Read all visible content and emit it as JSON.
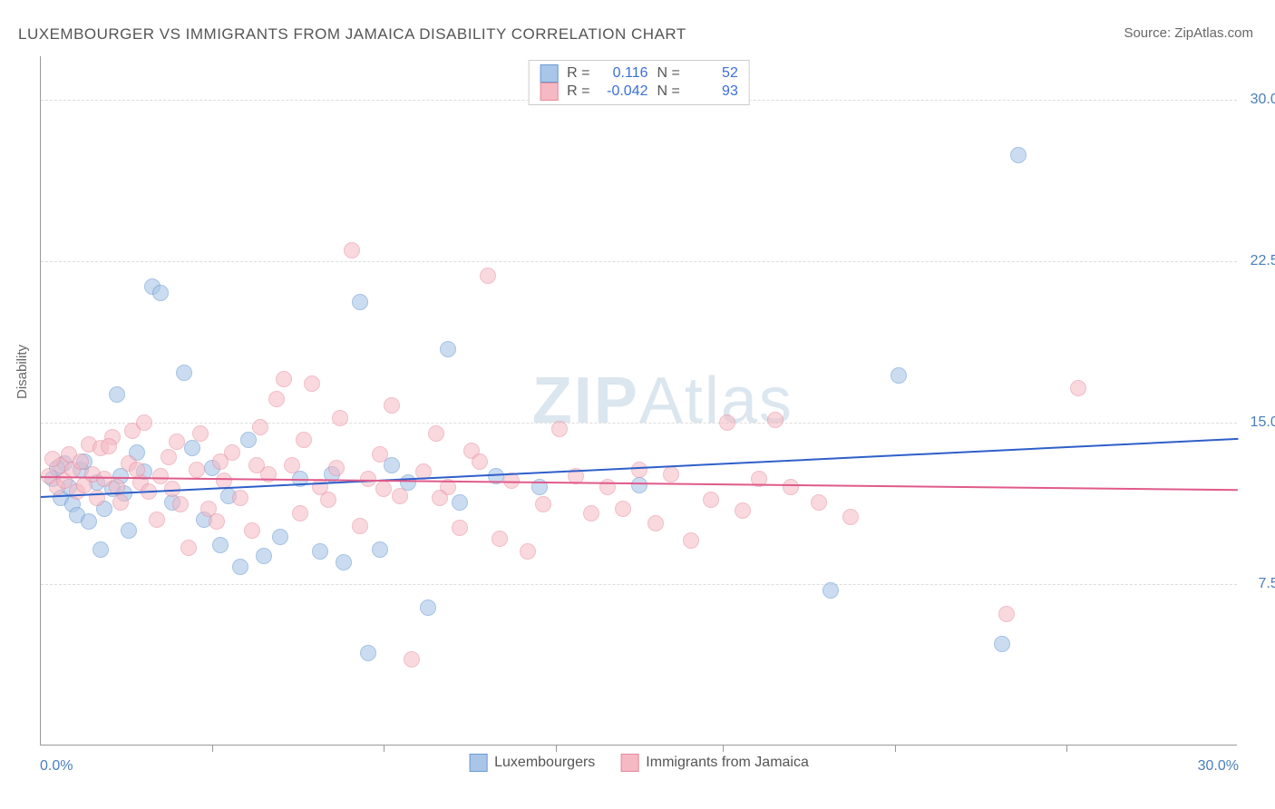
{
  "title": "LUXEMBOURGER VS IMMIGRANTS FROM JAMAICA DISABILITY CORRELATION CHART",
  "source": "Source: ZipAtlas.com",
  "watermark_bold": "ZIP",
  "watermark_light": "Atlas",
  "ylabel": "Disability",
  "chart": {
    "type": "scatter",
    "background_color": "#ffffff",
    "grid_color": "#dddddd",
    "axis_color": "#999999",
    "xlim": [
      0,
      30
    ],
    "ylim": [
      0,
      32
    ],
    "x_start_label": "0.0%",
    "x_end_label": "30.0%",
    "yticks": [
      7.5,
      15.0,
      22.5,
      30.0
    ],
    "ytick_labels": [
      "7.5%",
      "15.0%",
      "22.5%",
      "30.0%"
    ],
    "xtick_positions": [
      4.3,
      8.6,
      12.9,
      17.1,
      21.4,
      25.7
    ],
    "point_radius": 9,
    "series": [
      {
        "name": "Luxembourgers",
        "fill": "#a9c6e8",
        "stroke": "#6a9bd1",
        "fill_opacity": 0.6,
        "R": "0.116",
        "N": "52",
        "trend": {
          "y_at_x0": 11.6,
          "y_at_xmax": 14.3,
          "color": "#2e5fc9"
        },
        "points": [
          [
            0.3,
            12.4
          ],
          [
            0.5,
            11.5
          ],
          [
            0.6,
            13.1
          ],
          [
            0.7,
            12.0
          ],
          [
            0.8,
            11.2
          ],
          [
            0.9,
            10.7
          ],
          [
            1.0,
            12.8
          ],
          [
            1.1,
            13.2
          ],
          [
            1.2,
            10.4
          ],
          [
            1.4,
            12.2
          ],
          [
            1.5,
            9.1
          ],
          [
            1.8,
            11.9
          ],
          [
            1.9,
            16.3
          ],
          [
            2.0,
            12.5
          ],
          [
            2.2,
            10.0
          ],
          [
            2.4,
            13.6
          ],
          [
            2.6,
            12.7
          ],
          [
            2.8,
            21.3
          ],
          [
            3.0,
            21.0
          ],
          [
            3.3,
            11.3
          ],
          [
            3.6,
            17.3
          ],
          [
            3.8,
            13.8
          ],
          [
            4.1,
            10.5
          ],
          [
            4.3,
            12.9
          ],
          [
            4.5,
            9.3
          ],
          [
            4.7,
            11.6
          ],
          [
            5.0,
            8.3
          ],
          [
            5.2,
            14.2
          ],
          [
            5.6,
            8.8
          ],
          [
            6.0,
            9.7
          ],
          [
            6.5,
            12.4
          ],
          [
            7.0,
            9.0
          ],
          [
            7.3,
            12.6
          ],
          [
            7.6,
            8.5
          ],
          [
            8.0,
            20.6
          ],
          [
            8.2,
            4.3
          ],
          [
            8.5,
            9.1
          ],
          [
            8.8,
            13.0
          ],
          [
            9.2,
            12.2
          ],
          [
            9.7,
            6.4
          ],
          [
            10.2,
            18.4
          ],
          [
            10.5,
            11.3
          ],
          [
            11.4,
            12.5
          ],
          [
            21.5,
            17.2
          ],
          [
            19.8,
            7.2
          ],
          [
            24.1,
            4.7
          ],
          [
            24.5,
            27.4
          ],
          [
            15.0,
            12.1
          ],
          [
            12.5,
            12.0
          ],
          [
            1.6,
            11.0
          ],
          [
            0.4,
            12.9
          ],
          [
            2.1,
            11.7
          ]
        ]
      },
      {
        "name": "Immigrants from Jamaica",
        "fill": "#f5b9c4",
        "stroke": "#e68a9c",
        "fill_opacity": 0.55,
        "R": "-0.042",
        "N": "93",
        "trend": {
          "y_at_x0": 12.5,
          "y_at_xmax": 11.9,
          "color": "#e05a8a"
        },
        "points": [
          [
            0.2,
            12.5
          ],
          [
            0.4,
            12.0
          ],
          [
            0.5,
            13.0
          ],
          [
            0.6,
            12.3
          ],
          [
            0.7,
            13.5
          ],
          [
            0.8,
            12.8
          ],
          [
            0.9,
            11.8
          ],
          [
            1.0,
            13.2
          ],
          [
            1.1,
            12.1
          ],
          [
            1.2,
            14.0
          ],
          [
            1.3,
            12.6
          ],
          [
            1.4,
            11.5
          ],
          [
            1.5,
            13.8
          ],
          [
            1.6,
            12.4
          ],
          [
            1.8,
            14.3
          ],
          [
            1.9,
            12.0
          ],
          [
            2.0,
            11.3
          ],
          [
            2.2,
            13.1
          ],
          [
            2.3,
            14.6
          ],
          [
            2.5,
            12.2
          ],
          [
            2.6,
            15.0
          ],
          [
            2.7,
            11.8
          ],
          [
            2.9,
            10.5
          ],
          [
            3.0,
            12.5
          ],
          [
            3.2,
            13.4
          ],
          [
            3.4,
            14.1
          ],
          [
            3.5,
            11.2
          ],
          [
            3.7,
            9.2
          ],
          [
            3.9,
            12.8
          ],
          [
            4.0,
            14.5
          ],
          [
            4.2,
            11.0
          ],
          [
            4.4,
            10.4
          ],
          [
            4.6,
            12.3
          ],
          [
            4.8,
            13.6
          ],
          [
            5.0,
            11.5
          ],
          [
            5.3,
            10.0
          ],
          [
            5.5,
            14.8
          ],
          [
            5.7,
            12.6
          ],
          [
            5.9,
            16.1
          ],
          [
            6.1,
            17.0
          ],
          [
            6.3,
            13.0
          ],
          [
            6.5,
            10.8
          ],
          [
            6.8,
            16.8
          ],
          [
            7.0,
            12.0
          ],
          [
            7.2,
            11.4
          ],
          [
            7.5,
            15.2
          ],
          [
            7.8,
            23.0
          ],
          [
            8.0,
            10.2
          ],
          [
            8.2,
            12.4
          ],
          [
            8.5,
            13.5
          ],
          [
            8.8,
            15.8
          ],
          [
            9.0,
            11.6
          ],
          [
            9.3,
            4.0
          ],
          [
            9.6,
            12.7
          ],
          [
            9.9,
            14.5
          ],
          [
            10.2,
            12.0
          ],
          [
            10.5,
            10.1
          ],
          [
            10.8,
            13.7
          ],
          [
            11.2,
            21.8
          ],
          [
            11.5,
            9.6
          ],
          [
            11.8,
            12.3
          ],
          [
            12.2,
            9.0
          ],
          [
            12.6,
            11.2
          ],
          [
            13.0,
            14.7
          ],
          [
            13.4,
            12.5
          ],
          [
            13.8,
            10.8
          ],
          [
            14.2,
            12.0
          ],
          [
            14.6,
            11.0
          ],
          [
            15.0,
            12.8
          ],
          [
            15.4,
            10.3
          ],
          [
            15.8,
            12.6
          ],
          [
            16.3,
            9.5
          ],
          [
            16.8,
            11.4
          ],
          [
            17.2,
            15.0
          ],
          [
            17.6,
            10.9
          ],
          [
            18.0,
            12.4
          ],
          [
            18.4,
            15.1
          ],
          [
            18.8,
            12.0
          ],
          [
            19.5,
            11.3
          ],
          [
            20.3,
            10.6
          ],
          [
            24.2,
            6.1
          ],
          [
            26.0,
            16.6
          ],
          [
            0.3,
            13.3
          ],
          [
            1.7,
            13.9
          ],
          [
            2.4,
            12.8
          ],
          [
            3.3,
            11.9
          ],
          [
            4.5,
            13.2
          ],
          [
            5.4,
            13.0
          ],
          [
            6.6,
            14.2
          ],
          [
            7.4,
            12.9
          ],
          [
            8.6,
            11.9
          ],
          [
            10.0,
            11.5
          ],
          [
            11.0,
            13.2
          ]
        ]
      }
    ]
  },
  "legend_labels": {
    "r_label": "R =",
    "n_label": "N ="
  }
}
